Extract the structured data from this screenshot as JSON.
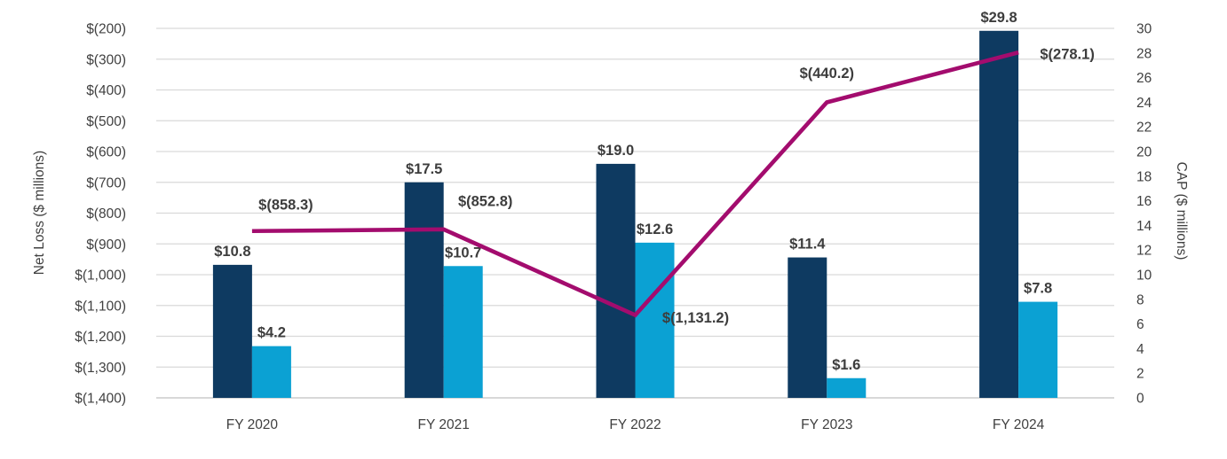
{
  "chart_data": {
    "type": "combo",
    "subtype": "grouped-bars-plus-line",
    "title": "",
    "categories": [
      "FY 2020",
      "FY 2021",
      "FY 2022",
      "FY 2023",
      "FY 2024"
    ],
    "bar_series": [
      {
        "name": "dark-navy-bars",
        "axis": "right",
        "color": "#0e3a61",
        "values": [
          10.8,
          17.5,
          19.0,
          11.4,
          29.8
        ],
        "labels": [
          "$10.8",
          "$17.5",
          "$19.0",
          "$11.4",
          "$29.8"
        ]
      },
      {
        "name": "light-blue-bars",
        "axis": "right",
        "color": "#0ba1d3",
        "values": [
          4.2,
          10.7,
          12.6,
          1.6,
          7.8
        ],
        "labels": [
          "$4.2",
          "$10.7",
          "$12.6",
          "$1.6",
          "$7.8"
        ]
      }
    ],
    "line_series": {
      "name": "magenta-line",
      "axis": "left",
      "color": "#a30c6e",
      "values": [
        -858.3,
        -852.8,
        -1131.2,
        -440.2,
        -278.1
      ],
      "labels": [
        "$(858.3)",
        "$(852.8)",
        "$(1,131.2)",
        "$(440.2)",
        "$(278.1)"
      ]
    },
    "left_axis": {
      "title": "Net Loss ($ millions)",
      "min": -1400,
      "max": -200,
      "ticks": [
        "$(200)",
        "$(300)",
        "$(400)",
        "$(500)",
        "$(600)",
        "$(700)",
        "$(800)",
        "$(900)",
        "$(1,000)",
        "$(1,100)",
        "$(1,200)",
        "$(1,300)",
        "$(1,400)"
      ]
    },
    "right_axis": {
      "title": "CAP ($ millions)",
      "min": 0,
      "max": 30,
      "ticks": [
        "30",
        "28",
        "26",
        "24",
        "22",
        "20",
        "18",
        "16",
        "14",
        "12",
        "10",
        "8",
        "6",
        "4",
        "2",
        "0"
      ]
    },
    "grid": "horizontal",
    "legend": "none",
    "colors": {
      "gridline": "#d9d9d9",
      "baseline": "#c0c0c0",
      "text": "#404040",
      "label_text": "#3d3d3d"
    }
  }
}
